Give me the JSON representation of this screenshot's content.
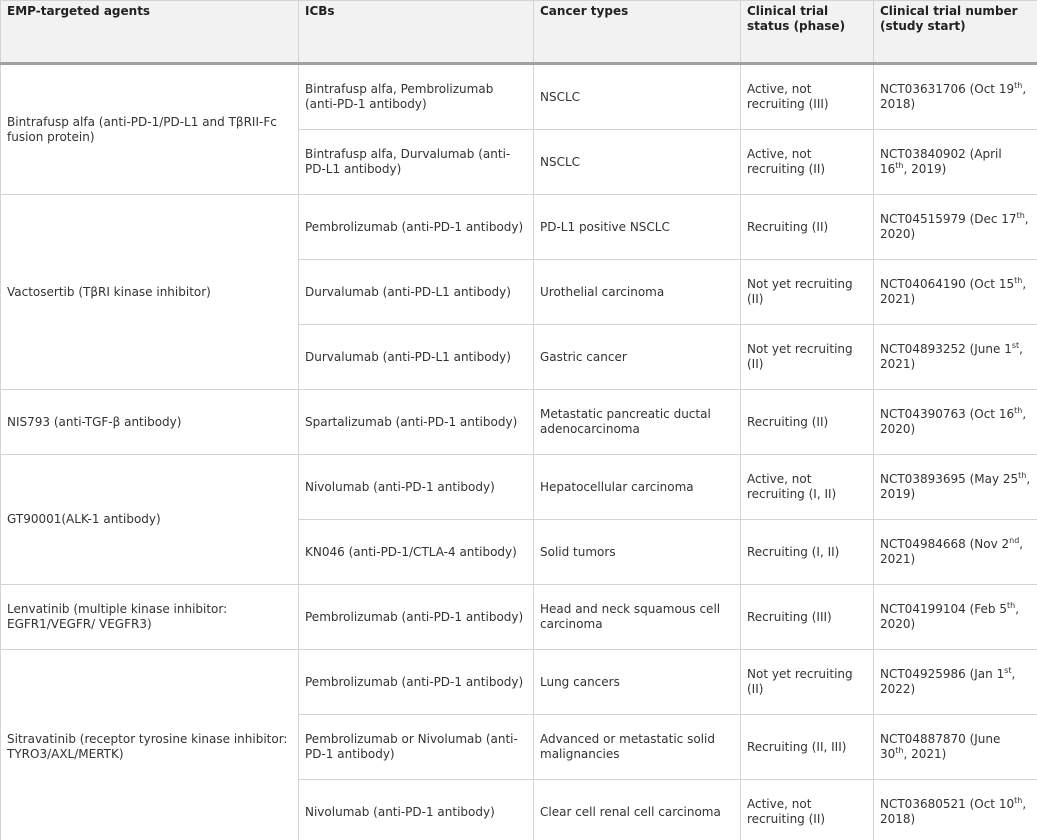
{
  "table": {
    "header": [
      "EMP-targeted agents",
      "ICBs",
      "Cancer types",
      "Clinical trial status (phase)",
      "Clinical trial number (study start)"
    ],
    "groups": [
      {
        "agent": "Bintrafusp alfa (anti-PD-1/PD-L1 and TβRII-Fc fusion protein)",
        "trials": [
          {
            "icbs": "Bintrafusp alfa, Pembrolizumab (anti-PD-1 antibody)",
            "cancer": "NSCLC",
            "status": "Active, not recruiting (III)",
            "number": {
              "text": "NCT03631706 (Oct 19",
              "sup": "th",
              "tail": ", 2018)"
            }
          },
          {
            "icbs": "Bintrafusp alfa, Durvalumab (anti-PD-L1 antibody)",
            "cancer": "NSCLC",
            "status": "Active, not recruiting (II)",
            "number": {
              "text": "NCT03840902 (April 16",
              "sup": "th",
              "tail": ", 2019)"
            }
          }
        ]
      },
      {
        "agent": "Vactosertib (TβRI kinase inhibitor)",
        "trials": [
          {
            "icbs": "Pembrolizumab (anti-PD-1 antibody)",
            "cancer": "PD-L1 positive NSCLC",
            "status": "Recruiting (II)",
            "number": {
              "text": "NCT04515979 (Dec 17",
              "sup": "th",
              "tail": ", 2020)"
            }
          },
          {
            "icbs": "Durvalumab (anti-PD-L1 antibody)",
            "cancer": "Urothelial carcinoma",
            "status": "Not yet recruiting (II)",
            "number": {
              "text": "NCT04064190 (Oct 15",
              "sup": "th",
              "tail": ", 2021)"
            }
          },
          {
            "icbs": "Durvalumab (anti-PD-L1 antibody)",
            "cancer": "Gastric cancer",
            "status": "Not yet recruiting (II)",
            "number": {
              "text": "NCT04893252 (June 1",
              "sup": "st",
              "tail": ", 2021)"
            }
          }
        ]
      },
      {
        "agent": "NIS793 (anti-TGF-β antibody)",
        "trials": [
          {
            "icbs": "Spartalizumab (anti-PD-1 antibody)",
            "cancer": "Metastatic pancreatic ductal adenocarcinoma",
            "status": "Recruiting (II)",
            "number": {
              "text": "NCT04390763 (Oct 16",
              "sup": "th",
              "tail": ", 2020)"
            }
          }
        ]
      },
      {
        "agent": "GT90001(ALK-1 antibody)",
        "trials": [
          {
            "icbs": "Nivolumab (anti-PD-1 antibody)",
            "cancer": "Hepatocellular carcinoma",
            "status": "Active, not recruiting (I, II)",
            "number": {
              "text": "NCT03893695 (May 25",
              "sup": "th",
              "tail": ", 2019)"
            }
          },
          {
            "icbs": "KN046 (anti-PD-1/CTLA-4 antibody)",
            "cancer": "Solid tumors",
            "status": "Recruiting (I, II)",
            "number": {
              "text": "NCT04984668 (Nov 2",
              "sup": "nd",
              "tail": ", 2021)"
            }
          }
        ]
      },
      {
        "agent": "Lenvatinib (multiple kinase inhibitor: EGFR1/VEGFR/ VEGFR3)",
        "trials": [
          {
            "icbs": "Pembrolizumab (anti-PD-1 antibody)",
            "cancer": "Head and neck squamous cell carcinoma",
            "status": "Recruiting (III)",
            "number": {
              "text": "NCT04199104 (Feb 5",
              "sup": "th",
              "tail": ", 2020)"
            }
          }
        ]
      },
      {
        "agent": "Sitravatinib (receptor tyrosine kinase inhibitor: TYRO3/AXL/MERTK)",
        "trials": [
          {
            "icbs": "Pembrolizumab (anti-PD-1 antibody)",
            "cancer": "Lung cancers",
            "status": "Not yet recruiting (II)",
            "number": {
              "text": "NCT04925986 (Jan 1",
              "sup": "st",
              "tail": ", 2022)"
            }
          },
          {
            "icbs": "Pembrolizumab or Nivolumab (anti-PD-1 antibody)",
            "cancer": "Advanced or metastatic solid malignancies",
            "status": "Recruiting (II, III)",
            "number": {
              "text": "NCT04887870 (June 30",
              "sup": "th",
              "tail": ", 2021)"
            }
          },
          {
            "icbs": "Nivolumab (anti-PD-1 antibody)",
            "cancer": "Clear cell renal cell carcinoma",
            "status": "Active, not recruiting (II)",
            "number": {
              "text": "NCT03680521 (Oct 10",
              "sup": "th",
              "tail": ", 2018)"
            }
          }
        ]
      }
    ]
  }
}
